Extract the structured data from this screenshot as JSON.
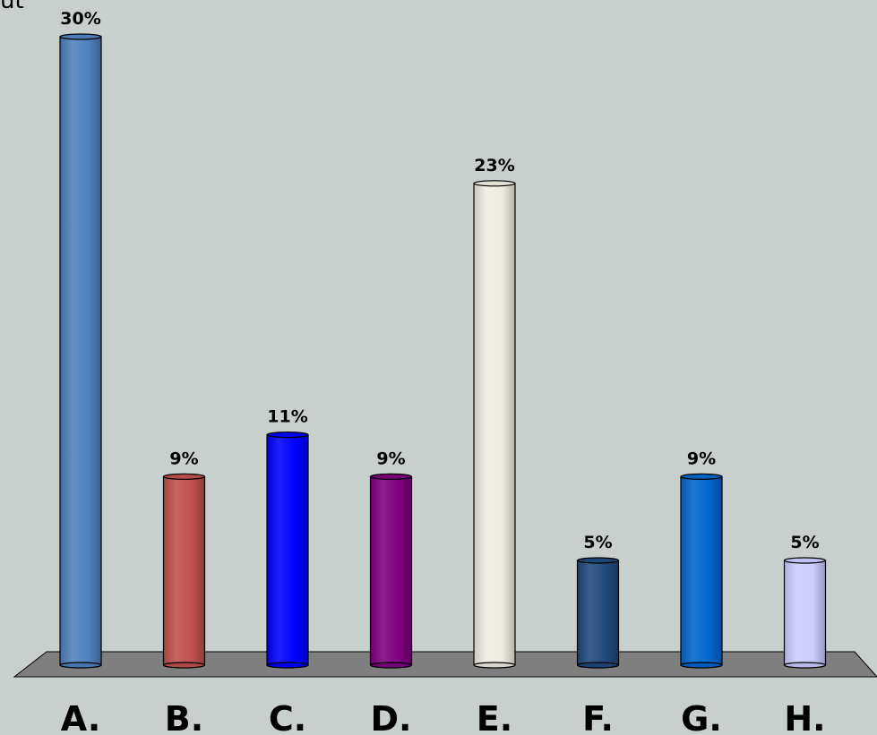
{
  "corner_text": "ut",
  "chart_data": {
    "type": "bar",
    "title": "",
    "xlabel": "",
    "ylabel": "",
    "ylim": [
      0,
      30
    ],
    "grid": false,
    "legend": "none",
    "categories": [
      "A.",
      "B.",
      "C.",
      "D.",
      "E.",
      "F.",
      "G.",
      "H."
    ],
    "values": [
      30,
      9,
      11,
      9,
      23,
      5,
      9,
      5
    ],
    "data_labels": [
      "30%",
      "9%",
      "11%",
      "9%",
      "23%",
      "5%",
      "9%",
      "5%"
    ],
    "bar_colors": [
      "#4f81bd",
      "#c0504d",
      "#0000ff",
      "#800080",
      "#eeece1",
      "#1f497d",
      "#0066cc",
      "#ccccff"
    ],
    "floor_color": "#7f7f7f",
    "background_color": "#c9cfcd"
  }
}
